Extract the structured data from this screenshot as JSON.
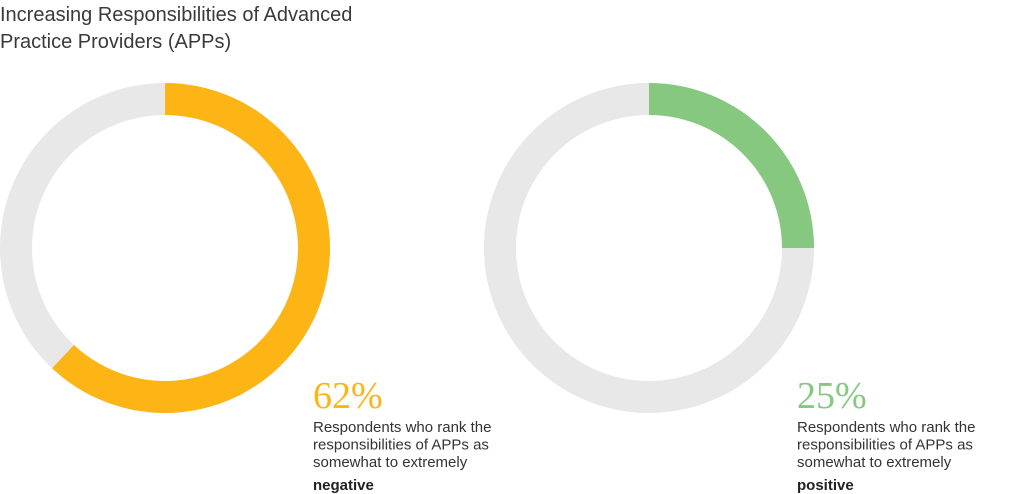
{
  "title": "Increasing Responsibilities of Advanced Practice Providers (APPs)",
  "chart_data": [
    {
      "type": "donut",
      "values": [
        62
      ],
      "value_labels": [
        "62%"
      ],
      "color": "#fdb515",
      "caption_lines": [
        "Respondents who rank the",
        "responsibilities of APPs as",
        "somewhat to extremely"
      ],
      "emphasis": "negative"
    },
    {
      "type": "donut",
      "values": [
        25
      ],
      "value_labels": [
        "25%"
      ],
      "color": "#86c87f",
      "caption_lines": [
        "Respondents who rank the",
        "responsibilities of APPs as",
        "somewhat to extremely"
      ],
      "emphasis": "positive"
    }
  ]
}
